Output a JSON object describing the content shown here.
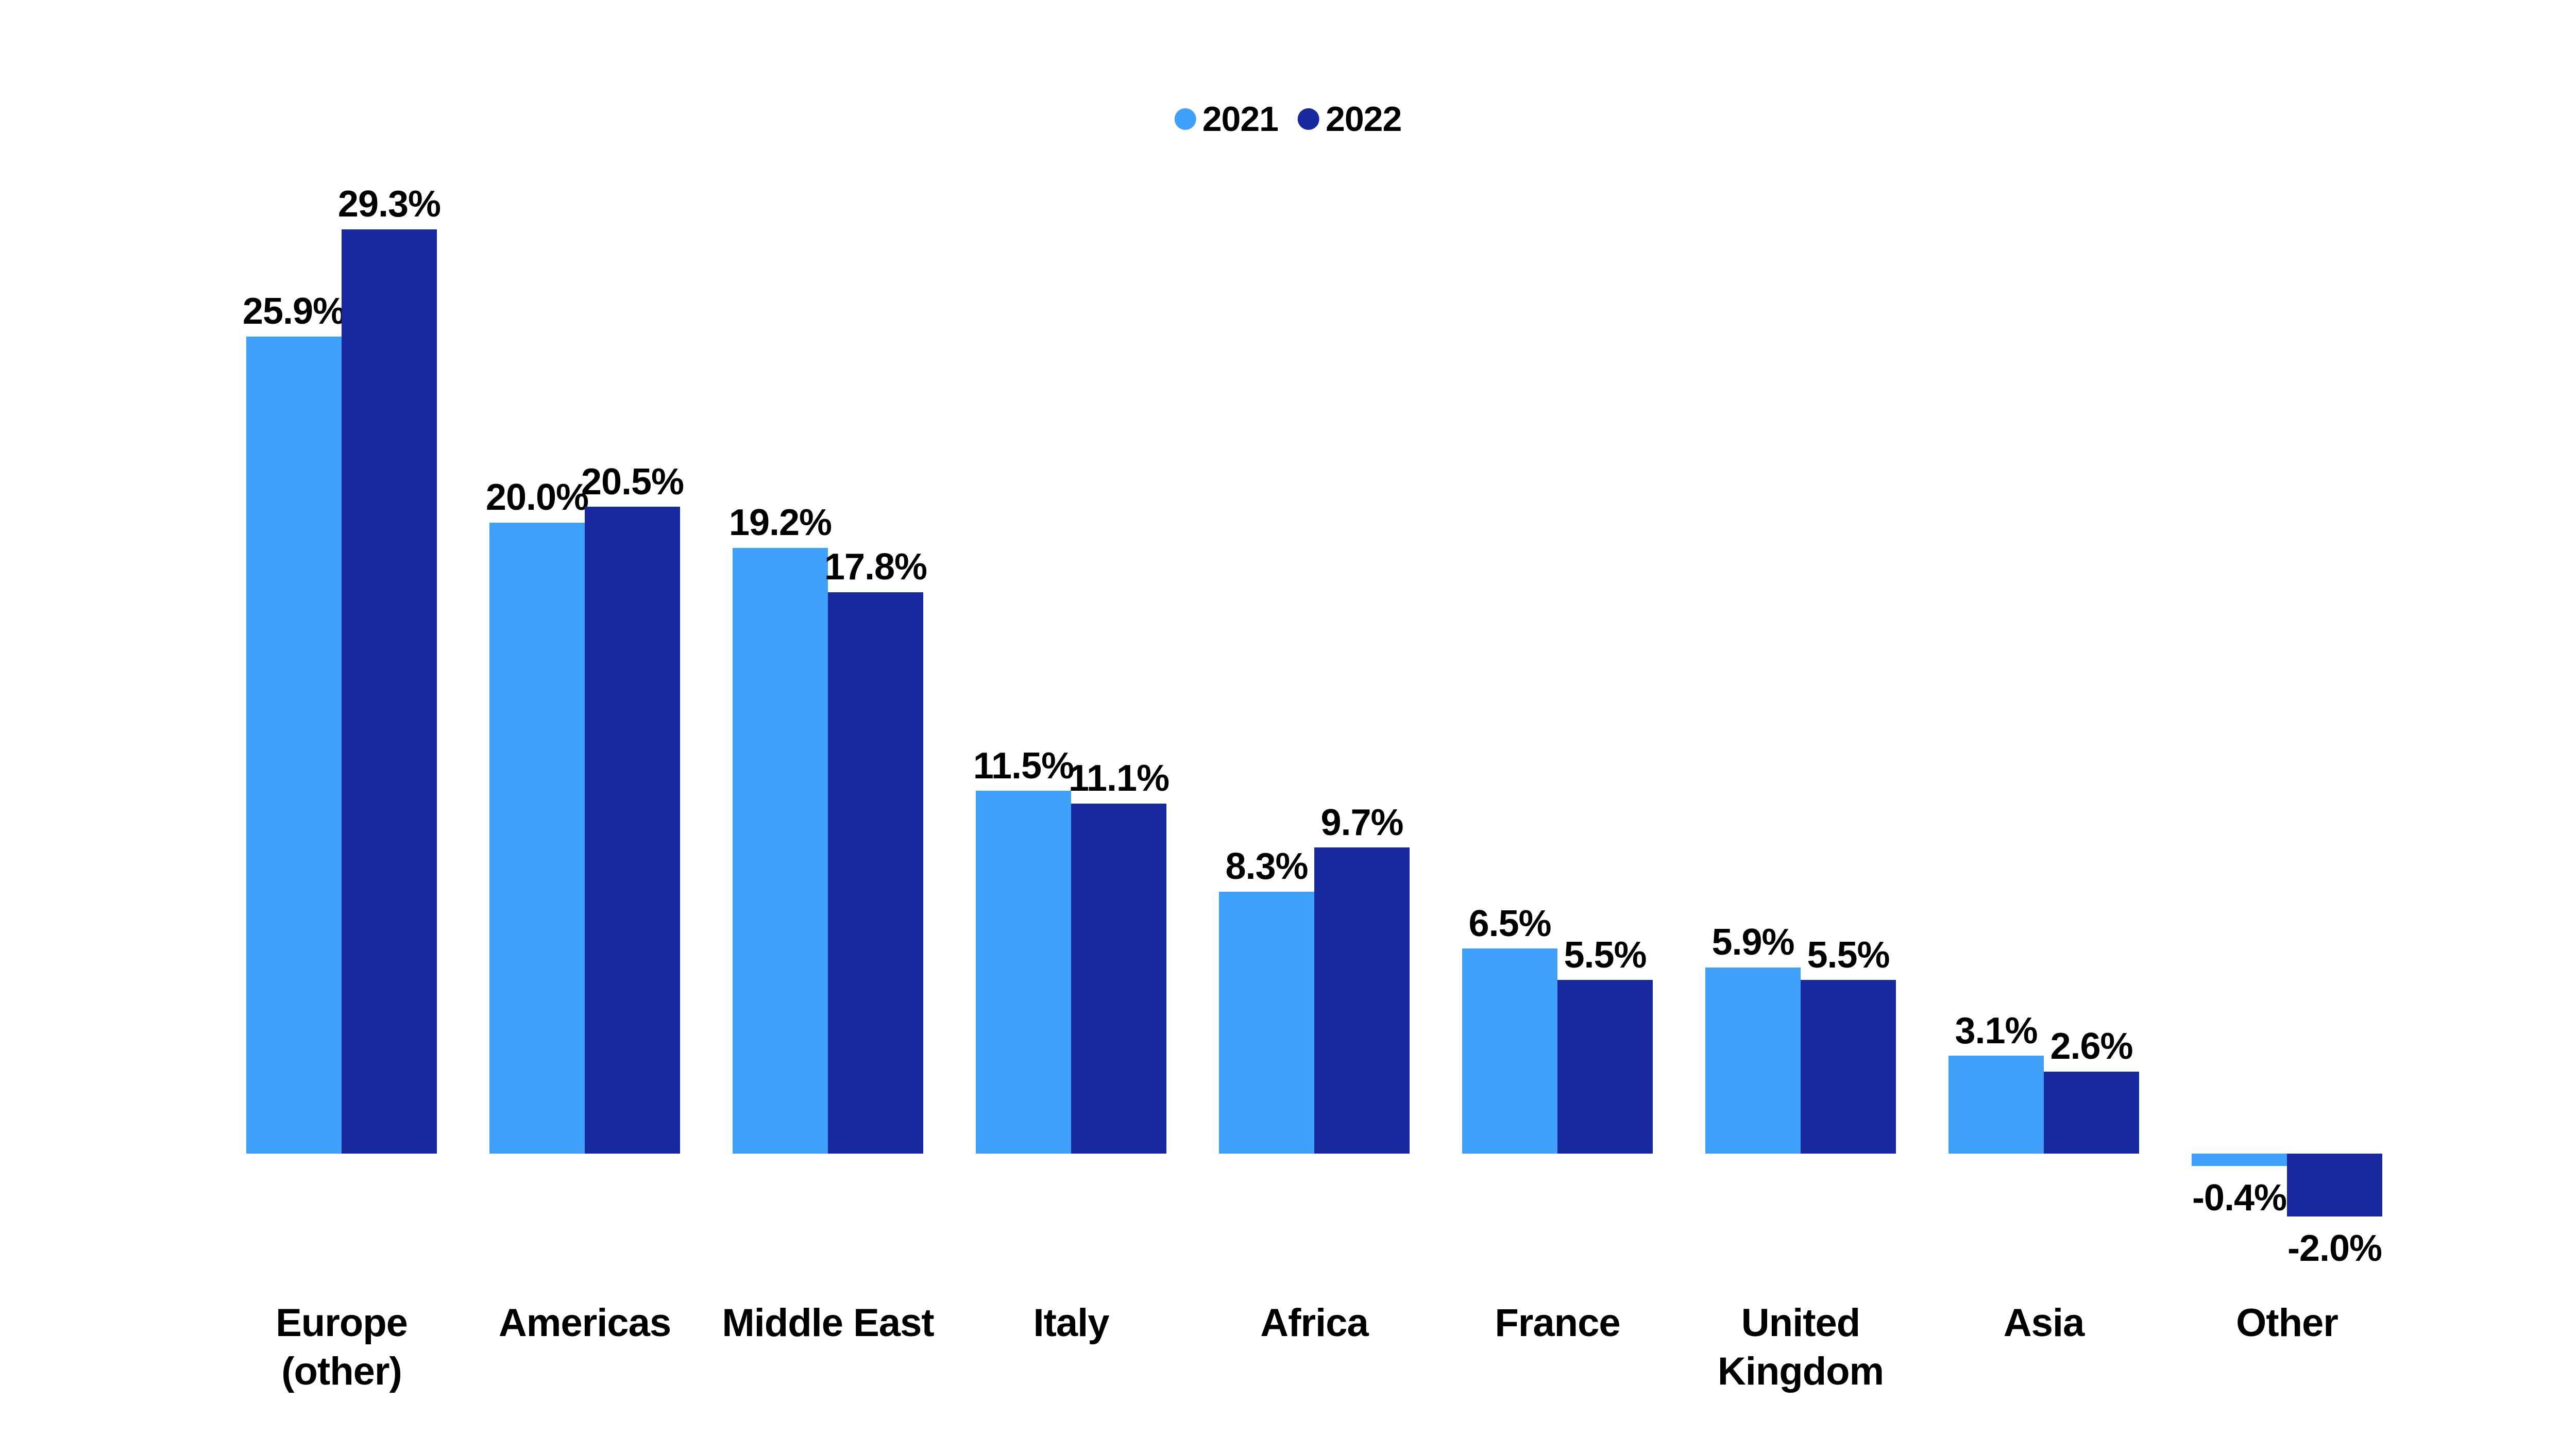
{
  "chart_data": {
    "type": "bar",
    "categories": [
      "Europe\n(other)",
      "Americas",
      "Middle East",
      "Italy",
      "Africa",
      "France",
      "United\nKingdom",
      "Asia",
      "Other"
    ],
    "series": [
      {
        "name": "2021",
        "color": "#3EA0F9",
        "values": [
          25.9,
          20.0,
          19.2,
          11.5,
          8.3,
          6.5,
          5.9,
          3.1,
          -0.4
        ]
      },
      {
        "name": "2022",
        "color": "#18289E",
        "values": [
          29.3,
          20.5,
          17.8,
          11.1,
          9.7,
          5.5,
          5.5,
          2.6,
          -2.0
        ]
      }
    ],
    "title": "",
    "xlabel": "",
    "ylabel": "",
    "ylim": [
      -2.0,
      29.3
    ],
    "grid": false,
    "axis_lines": false,
    "legend_position": "top-center",
    "data_labels": {
      "placement": "outside-end",
      "format": "one-decimal-percent"
    }
  },
  "colors": {
    "background": "#FFFFFF",
    "text": "#000000",
    "series_2021": "#3EA0F9",
    "series_2022": "#18289E"
  },
  "legend": {
    "items": [
      {
        "label": "2021",
        "marker": "circle",
        "color": "#3EA0F9"
      },
      {
        "label": "2022",
        "marker": "circle",
        "color": "#18289E"
      }
    ]
  }
}
